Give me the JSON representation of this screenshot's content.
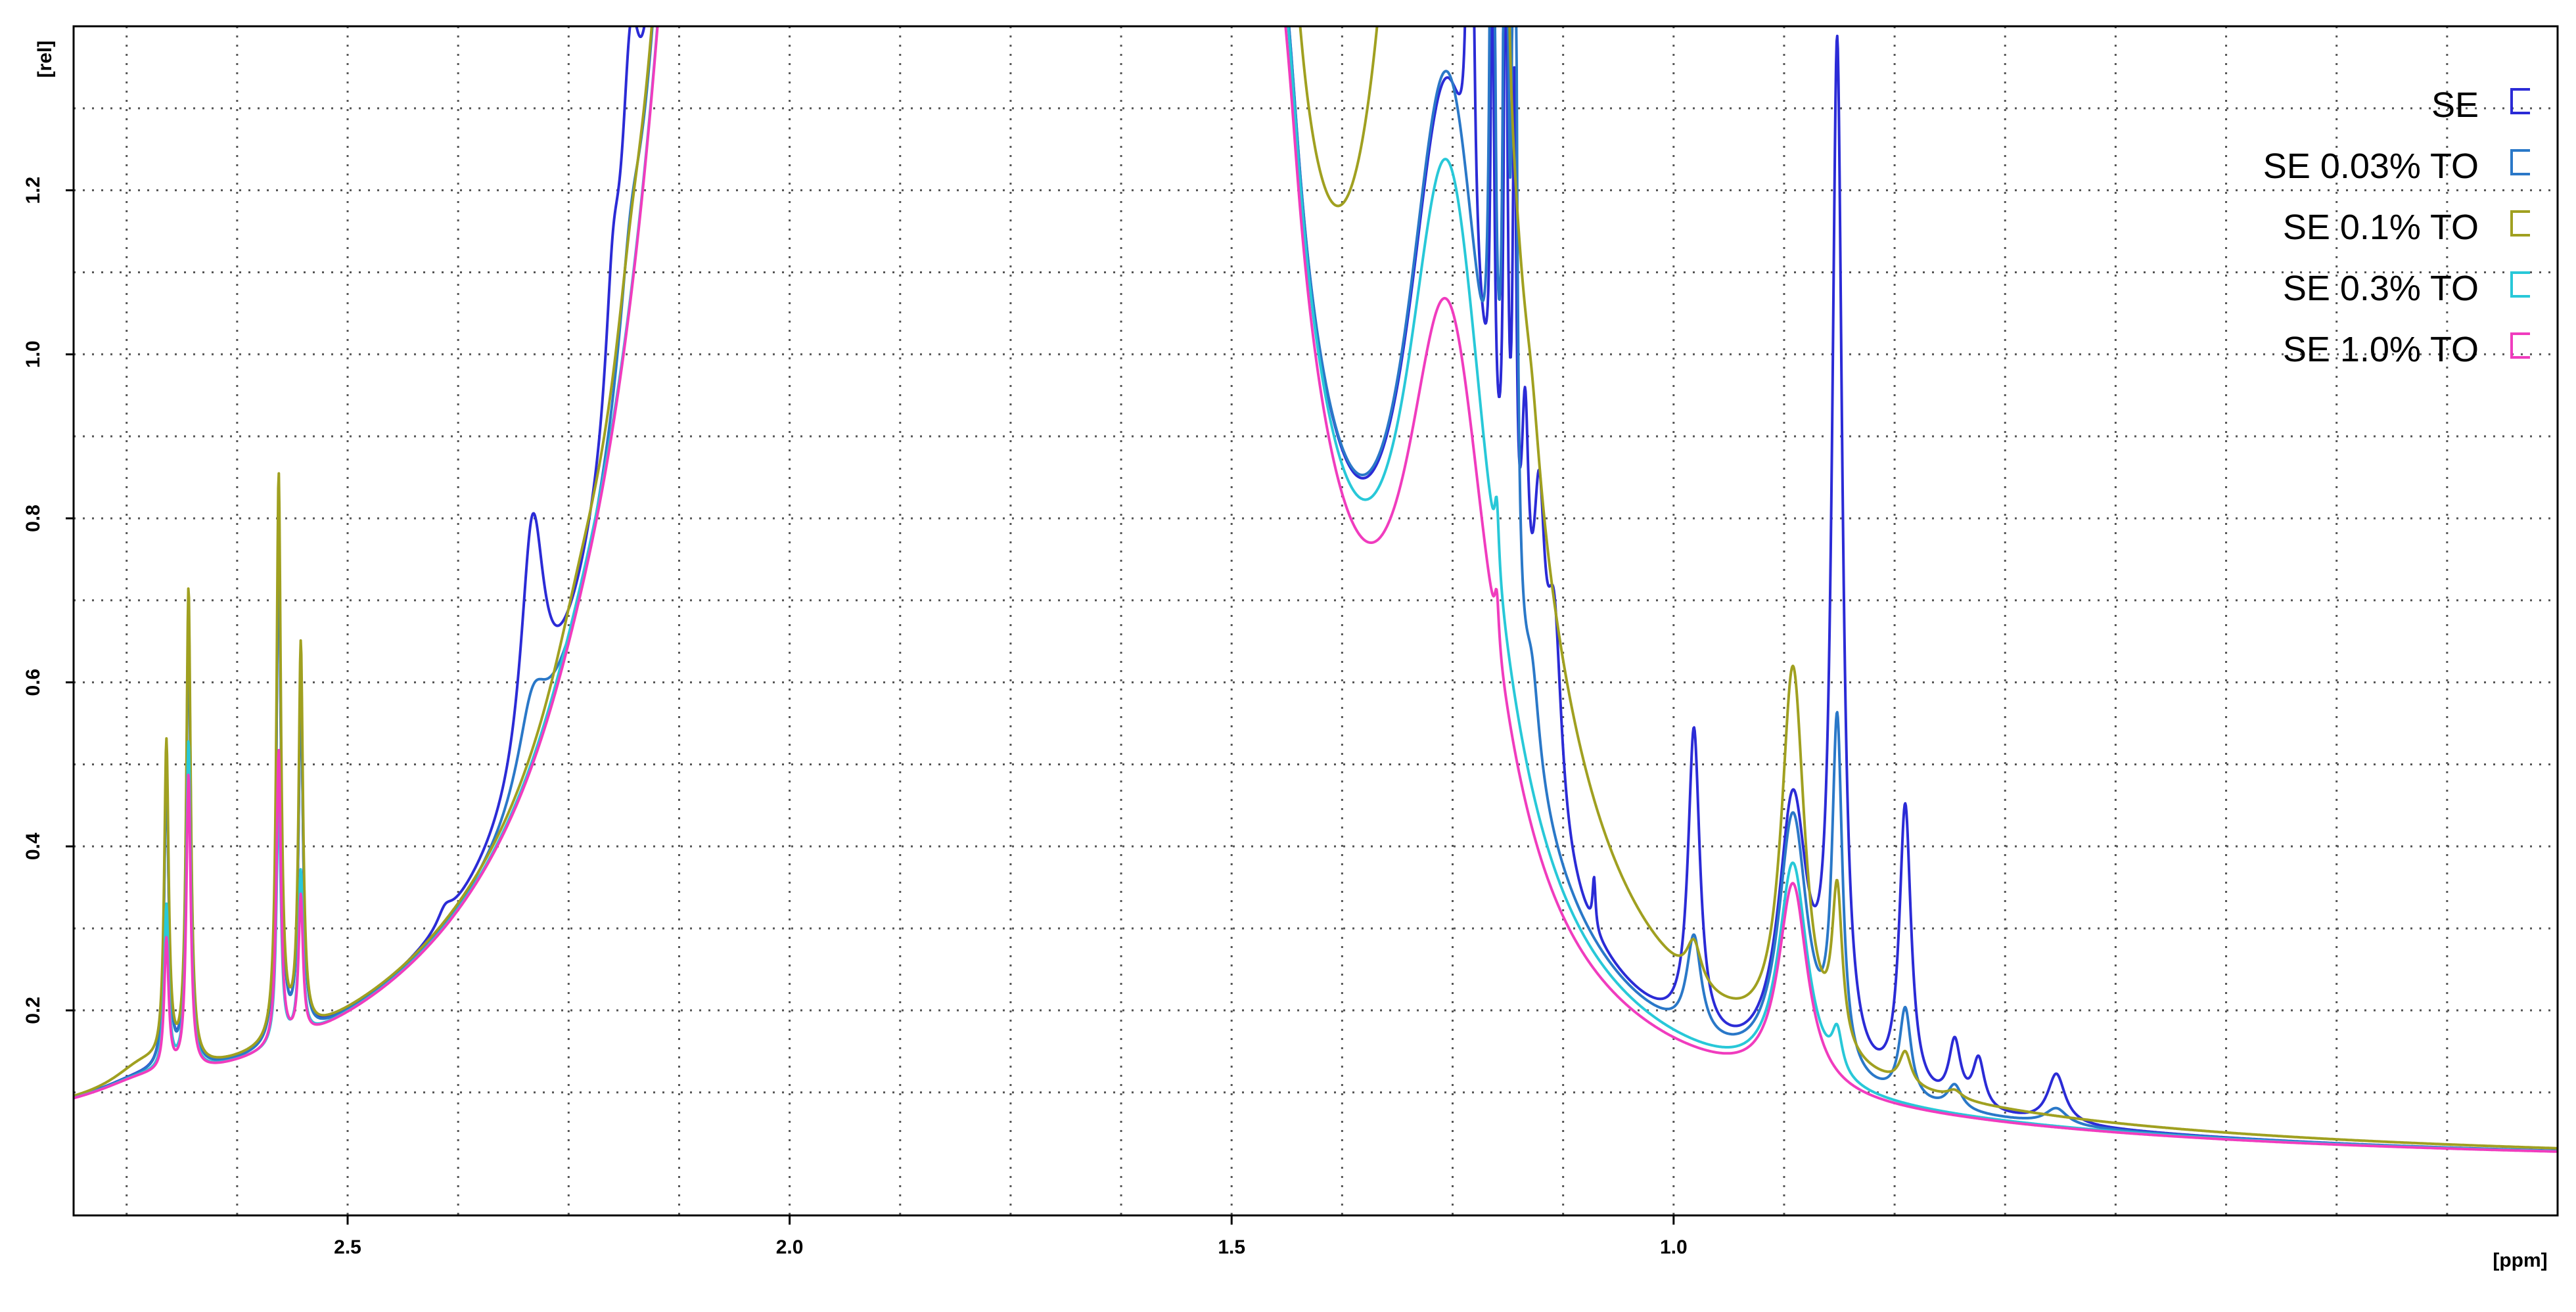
{
  "chart_data": {
    "type": "line",
    "xlabel": "[ppm]",
    "ylabel": "[rel]",
    "xlim": [
      2.81,
      0.0
    ],
    "ylim": [
      -0.05,
      1.4
    ],
    "x_reversed": true,
    "grid": true,
    "legend_position": "top-right",
    "x_ticks": [
      2.5,
      2.0,
      1.5,
      1.0
    ],
    "x_tick_labels": [
      "2.5",
      "2.0",
      "1.5",
      "1.0"
    ],
    "y_ticks": [
      0.2,
      0.4,
      0.6,
      0.8,
      1.0,
      1.2
    ],
    "y_tick_labels": [
      "0.2",
      "0.4",
      "0.6",
      "0.8",
      "1.0",
      "1.2"
    ],
    "series": [
      {
        "name": "SE",
        "color": "#2b2bd6",
        "peaks": [
          {
            "x": 2.732,
            "h": 0.018,
            "w": 0.06
          },
          {
            "x": 2.705,
            "h": 0.37,
            "w": 0.003
          },
          {
            "x": 2.68,
            "h": 0.55,
            "w": 0.003
          },
          {
            "x": 2.578,
            "h": 0.62,
            "w": 0.003
          },
          {
            "x": 2.553,
            "h": 0.42,
            "w": 0.003
          },
          {
            "x": 2.39,
            "h": 0.018,
            "w": 0.01
          },
          {
            "x": 2.291,
            "h": 0.305,
            "w": 0.016
          },
          {
            "x": 2.2,
            "h": 0.15,
            "w": 0.01
          },
          {
            "x": 2.18,
            "h": 0.28,
            "w": 0.012
          },
          {
            "x": 2.14,
            "h": 0.3,
            "w": 0.012
          },
          {
            "x": 2.1,
            "h": 0.19,
            "w": 0.012
          },
          {
            "x": 1.98,
            "h": 9,
            "w": 0.07
          },
          {
            "x": 1.885,
            "h": 0.22,
            "w": 0.02
          },
          {
            "x": 1.77,
            "h": 0.04,
            "w": 0.008
          },
          {
            "x": 1.72,
            "h": 0.04,
            "w": 0.008
          },
          {
            "x": 1.58,
            "h": 12,
            "w": 0.045
          },
          {
            "x": 1.435,
            "h": 0.09,
            "w": 0.015
          },
          {
            "x": 1.255,
            "h": 1.0,
            "w": 0.06
          },
          {
            "x": 1.23,
            "h": 1.3,
            "w": 0.0025
          },
          {
            "x": 1.205,
            "h": 0.6,
            "w": 0.0025
          },
          {
            "x": 1.19,
            "h": 0.8,
            "w": 0.0025
          },
          {
            "x": 1.18,
            "h": 0.6,
            "w": 0.0025
          },
          {
            "x": 1.168,
            "h": 0.3,
            "w": 0.005
          },
          {
            "x": 1.152,
            "h": 0.3,
            "w": 0.008
          },
          {
            "x": 1.135,
            "h": 0.25,
            "w": 0.01
          },
          {
            "x": 1.09,
            "h": 0.06,
            "w": 0.002
          },
          {
            "x": 0.977,
            "h": 0.37,
            "w": 0.008
          },
          {
            "x": 0.865,
            "h": 0.33,
            "w": 0.02
          },
          {
            "x": 0.815,
            "h": 1.24,
            "w": 0.007
          },
          {
            "x": 0.738,
            "h": 0.35,
            "w": 0.008
          },
          {
            "x": 0.682,
            "h": 0.075,
            "w": 0.008
          },
          {
            "x": 0.655,
            "h": 0.06,
            "w": 0.008
          },
          {
            "x": 0.567,
            "h": 0.06,
            "w": 0.012
          }
        ]
      },
      {
        "name": "SE 0.03% TO",
        "color": "#2a78c8",
        "peaks": [
          {
            "x": 2.732,
            "h": 0.018,
            "w": 0.06
          },
          {
            "x": 2.705,
            "h": 0.36,
            "w": 0.003
          },
          {
            "x": 2.68,
            "h": 0.54,
            "w": 0.003
          },
          {
            "x": 2.578,
            "h": 0.62,
            "w": 0.003
          },
          {
            "x": 2.553,
            "h": 0.42,
            "w": 0.003
          },
          {
            "x": 2.291,
            "h": 0.1,
            "w": 0.02
          },
          {
            "x": 2.18,
            "h": 0.1,
            "w": 0.015
          },
          {
            "x": 2.14,
            "h": 0.1,
            "w": 0.015
          },
          {
            "x": 1.98,
            "h": 9,
            "w": 0.07
          },
          {
            "x": 1.885,
            "h": 0.12,
            "w": 0.025
          },
          {
            "x": 1.58,
            "h": 12,
            "w": 0.045
          },
          {
            "x": 1.435,
            "h": 0.09,
            "w": 0.015
          },
          {
            "x": 1.255,
            "h": 1.02,
            "w": 0.06
          },
          {
            "x": 1.205,
            "h": 1.3,
            "w": 0.0025
          },
          {
            "x": 1.19,
            "h": 1.3,
            "w": 0.0025
          },
          {
            "x": 1.18,
            "h": 1.3,
            "w": 0.0025
          },
          {
            "x": 1.16,
            "h": 0.1,
            "w": 0.01
          },
          {
            "x": 0.977,
            "h": 0.12,
            "w": 0.01
          },
          {
            "x": 0.865,
            "h": 0.32,
            "w": 0.02
          },
          {
            "x": 0.815,
            "h": 0.42,
            "w": 0.007
          },
          {
            "x": 0.738,
            "h": 0.11,
            "w": 0.008
          },
          {
            "x": 0.682,
            "h": 0.03,
            "w": 0.01
          },
          {
            "x": 0.567,
            "h": 0.02,
            "w": 0.015
          }
        ]
      },
      {
        "name": "SE 0.1% TO",
        "color": "#a0a020",
        "peaks": [
          {
            "x": 2.732,
            "h": 0.03,
            "w": 0.04
          },
          {
            "x": 2.705,
            "h": 0.39,
            "w": 0.003
          },
          {
            "x": 2.68,
            "h": 0.58,
            "w": 0.003
          },
          {
            "x": 2.578,
            "h": 0.69,
            "w": 0.003
          },
          {
            "x": 2.553,
            "h": 0.47,
            "w": 0.003
          },
          {
            "x": 2.24,
            "h": 0.05,
            "w": 0.04
          },
          {
            "x": 2.18,
            "h": 0.07,
            "w": 0.02
          },
          {
            "x": 2.14,
            "h": 0.07,
            "w": 0.02
          },
          {
            "x": 1.98,
            "h": 9,
            "w": 0.07
          },
          {
            "x": 1.885,
            "h": 0.06,
            "w": 0.025
          },
          {
            "x": 1.58,
            "h": 12,
            "w": 0.045
          },
          {
            "x": 1.435,
            "h": 0.11,
            "w": 0.015
          },
          {
            "x": 1.255,
            "h": 2.5,
            "w": 0.06
          },
          {
            "x": 1.19,
            "h": 0.4,
            "w": 0.0025
          },
          {
            "x": 1.16,
            "h": 0.05,
            "w": 0.01
          },
          {
            "x": 0.977,
            "h": 0.05,
            "w": 0.01
          },
          {
            "x": 0.865,
            "h": 0.47,
            "w": 0.016
          },
          {
            "x": 0.815,
            "h": 0.19,
            "w": 0.007
          },
          {
            "x": 0.738,
            "h": 0.04,
            "w": 0.008
          },
          {
            "x": 0.682,
            "h": 0.01,
            "w": 0.01
          }
        ]
      },
      {
        "name": "SE 0.3% TO",
        "color": "#28c8d8",
        "peaks": [
          {
            "x": 2.732,
            "h": 0.018,
            "w": 0.06
          },
          {
            "x": 2.705,
            "h": 0.2,
            "w": 0.003
          },
          {
            "x": 2.68,
            "h": 0.4,
            "w": 0.003
          },
          {
            "x": 2.578,
            "h": 0.3,
            "w": 0.003
          },
          {
            "x": 2.553,
            "h": 0.2,
            "w": 0.003
          },
          {
            "x": 2.24,
            "h": 0.03,
            "w": 0.05
          },
          {
            "x": 1.98,
            "h": 9,
            "w": 0.07
          },
          {
            "x": 1.58,
            "h": 12,
            "w": 0.045
          },
          {
            "x": 1.435,
            "h": 0.09,
            "w": 0.015
          },
          {
            "x": 1.255,
            "h": 0.92,
            "w": 0.06
          },
          {
            "x": 1.2,
            "h": 0.08,
            "w": 0.003
          },
          {
            "x": 0.865,
            "h": 0.27,
            "w": 0.02
          },
          {
            "x": 0.815,
            "h": 0.05,
            "w": 0.007
          }
        ]
      },
      {
        "name": "SE 1.0% TO",
        "color": "#f03cbe",
        "peaks": [
          {
            "x": 2.732,
            "h": 0.018,
            "w": 0.06
          },
          {
            "x": 2.705,
            "h": 0.16,
            "w": 0.003
          },
          {
            "x": 2.68,
            "h": 0.36,
            "w": 0.003
          },
          {
            "x": 2.578,
            "h": 0.36,
            "w": 0.003
          },
          {
            "x": 2.553,
            "h": 0.17,
            "w": 0.003
          },
          {
            "x": 2.24,
            "h": 0.02,
            "w": 0.05
          },
          {
            "x": 1.98,
            "h": 9,
            "w": 0.07
          },
          {
            "x": 1.58,
            "h": 12,
            "w": 0.045
          },
          {
            "x": 1.435,
            "h": 0.07,
            "w": 0.015
          },
          {
            "x": 1.255,
            "h": 0.75,
            "w": 0.06
          },
          {
            "x": 1.2,
            "h": 0.06,
            "w": 0.003
          },
          {
            "x": 0.865,
            "h": 0.25,
            "w": 0.02
          }
        ]
      }
    ]
  }
}
